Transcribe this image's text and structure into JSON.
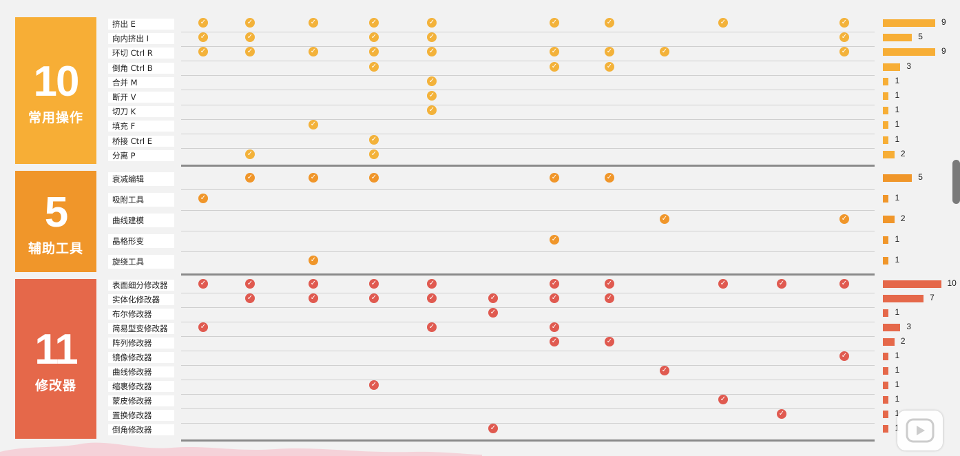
{
  "chart_data": {
    "type": "table",
    "columns": 12,
    "groups": [
      {
        "count": "10",
        "name": "常用操作",
        "color": "#f7ae36",
        "rows": [
          {
            "label": "挤出 E",
            "count": 9,
            "checks": [
              0,
              1,
              2,
              3,
              4,
              6,
              7,
              9,
              11
            ]
          },
          {
            "label": "向内挤出 I",
            "count": 5,
            "checks": [
              0,
              1,
              3,
              4,
              11
            ]
          },
          {
            "label": "环切 Ctrl R",
            "count": 9,
            "checks": [
              0,
              1,
              2,
              3,
              4,
              6,
              7,
              8,
              11
            ]
          },
          {
            "label": "倒角 Ctrl B",
            "count": 3,
            "checks": [
              3,
              6,
              7
            ]
          },
          {
            "label": "合并 M",
            "count": 1,
            "checks": [
              4
            ]
          },
          {
            "label": "断开 V",
            "count": 1,
            "checks": [
              4
            ]
          },
          {
            "label": "切刀 K",
            "count": 1,
            "checks": [
              4
            ]
          },
          {
            "label": "填充 F",
            "count": 1,
            "checks": [
              2
            ]
          },
          {
            "label": "桥接 Ctrl E",
            "count": 1,
            "checks": [
              3
            ]
          },
          {
            "label": "分离 P",
            "count": 2,
            "checks": [
              1,
              3
            ]
          }
        ]
      },
      {
        "count": "5",
        "name": "辅助工具",
        "color": "#f0962a",
        "rows": [
          {
            "label": "衰减编辑",
            "count": 5,
            "checks": [
              1,
              2,
              3,
              6,
              7
            ]
          },
          {
            "label": "吸附工具",
            "count": 1,
            "checks": [
              0
            ]
          },
          {
            "label": "曲线建模",
            "count": 2,
            "checks": [
              8,
              11
            ]
          },
          {
            "label": "晶格形变",
            "count": 1,
            "checks": [
              6
            ]
          },
          {
            "label": "旋绕工具",
            "count": 1,
            "checks": [
              2
            ]
          }
        ]
      },
      {
        "count": "11",
        "name": "修改器",
        "color": "#e5684a",
        "rows": [
          {
            "label": "表面细分修改器",
            "count": 10,
            "checks": [
              0,
              1,
              2,
              3,
              4,
              6,
              7,
              9,
              10,
              11
            ]
          },
          {
            "label": "实体化修改器",
            "count": 7,
            "checks": [
              1,
              2,
              3,
              4,
              5,
              6,
              7
            ]
          },
          {
            "label": "布尔修改器",
            "count": 1,
            "checks": [
              5
            ]
          },
          {
            "label": "简易型变修改器",
            "count": 3,
            "checks": [
              0,
              4,
              6
            ]
          },
          {
            "label": "阵列修改器",
            "count": 2,
            "checks": [
              6,
              7
            ]
          },
          {
            "label": "镜像修改器",
            "count": 1,
            "checks": [
              11
            ]
          },
          {
            "label": "曲线修改器",
            "count": 1,
            "checks": [
              8
            ]
          },
          {
            "label": "缩裹修改器",
            "count": 1,
            "checks": [
              3
            ]
          },
          {
            "label": "蒙皮修改器",
            "count": 1,
            "checks": [
              9
            ]
          },
          {
            "label": "置换修改器",
            "count": 1,
            "checks": [
              10
            ]
          },
          {
            "label": "倒角修改器",
            "count": 1,
            "checks": [
              5
            ]
          }
        ]
      }
    ],
    "check_colors": [
      "#f3b23a",
      "#f0962a",
      "#e05a50"
    ],
    "bar_colors": [
      "#f7ae36",
      "#f0962a",
      "#e5684a"
    ]
  },
  "icons": {
    "check": "check-circle-icon",
    "play": "play-icon",
    "scroll": "scrollbar-thumb"
  }
}
